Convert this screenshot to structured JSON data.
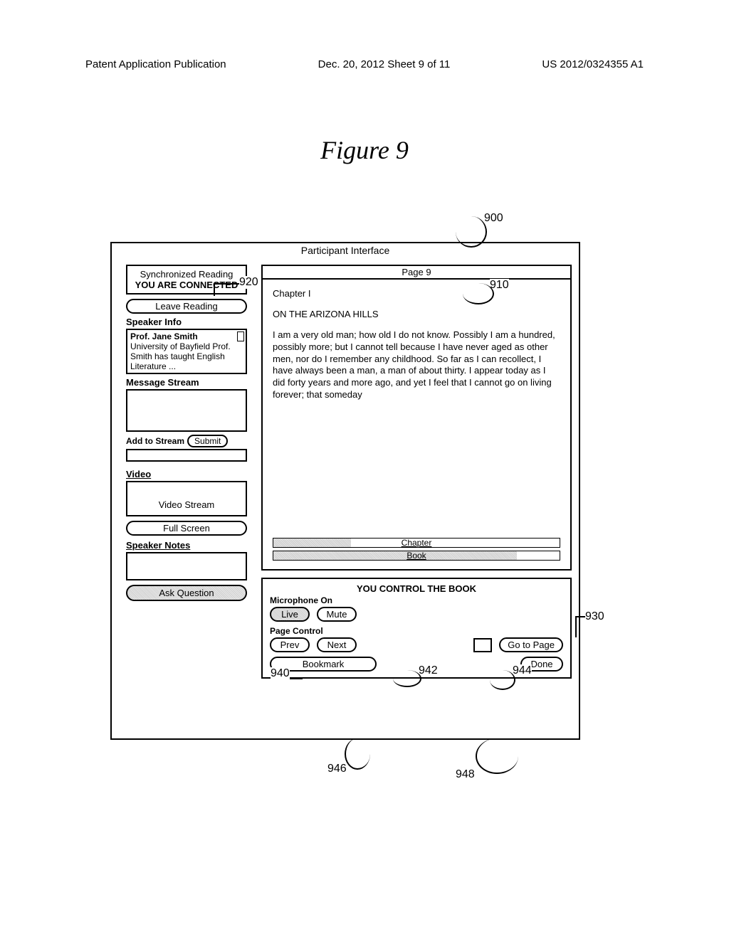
{
  "header": {
    "left": "Patent Application Publication",
    "center": "Dec. 20, 2012  Sheet 9 of 11",
    "right": "US 2012/0324355 A1"
  },
  "figure_title": "Figure 9",
  "main_title": "Participant Interface",
  "left": {
    "sync_title": "Synchronized Reading",
    "connected": "YOU ARE CONNECTED",
    "leave": "Leave Reading",
    "speaker_info_label": "Speaker Info",
    "speaker_name": "Prof. Jane Smith",
    "speaker_bio": "University of Bayfield Prof. Smith has taught English Literature ...",
    "msg_label": "Message Stream",
    "add_stream": "Add to Stream",
    "submit": "Submit",
    "video_label": "Video",
    "video_stream": "Video Stream",
    "full_screen": "Full Screen",
    "notes_label": "Speaker Notes",
    "ask_q": "Ask Question"
  },
  "page": {
    "page_num": "Page 9",
    "chapter": "Chapter I",
    "subtitle": "ON THE ARIZONA HILLS",
    "body": "I am a very old man; how old I do not know. Possibly I am a hundred, possibly more; but I cannot tell because I have never aged as other men, nor do I remember any childhood. So far as I can recollect, I have always been a man, a man of about thirty. I appear today as I did forty years and more ago, and yet I feel that I cannot go on living forever; that someday",
    "progress_chapter_label": "Chapter",
    "progress_chapter_pct": 27,
    "progress_book_label": "Book",
    "progress_book_pct": 85
  },
  "controls": {
    "title": "YOU CONTROL THE BOOK",
    "mic_label": "Microphone On",
    "live": "Live",
    "mute": "Mute",
    "page_ctrl_label": "Page Control",
    "prev": "Prev",
    "next": "Next",
    "goto": "Go to Page",
    "bookmark": "Bookmark",
    "done": "Done"
  },
  "callouts": {
    "r900": "900",
    "r910": "910",
    "r920": "920",
    "r930": "930",
    "r940": "940",
    "r942": "942",
    "r944": "944",
    "r946": "946",
    "r948": "948"
  }
}
